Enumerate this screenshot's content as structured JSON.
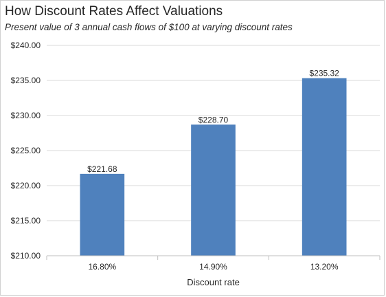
{
  "chart_data": {
    "type": "bar",
    "title": "How Discount Rates Affect Valuations",
    "subtitle": "Present value of 3 annual cash flows of $100 at varying discount rates",
    "xlabel": "Discount rate",
    "ylabel": "",
    "categories": [
      "16.80%",
      "14.90%",
      "13.20%"
    ],
    "values": [
      221.68,
      228.7,
      235.32
    ],
    "data_labels": [
      "$221.68",
      "$228.70",
      "$235.32"
    ],
    "ylim": [
      210,
      240
    ],
    "yticks": [
      210,
      215,
      220,
      225,
      230,
      235,
      240
    ],
    "ytick_labels": [
      "$210.00",
      "$215.00",
      "$220.00",
      "$225.00",
      "$230.00",
      "$235.00",
      "$240.00"
    ],
    "grid": true,
    "legend": "none",
    "bar_color": "#4f81bd",
    "grid_color": "#d9d9d9",
    "axis_color": "#bfbfbf"
  }
}
